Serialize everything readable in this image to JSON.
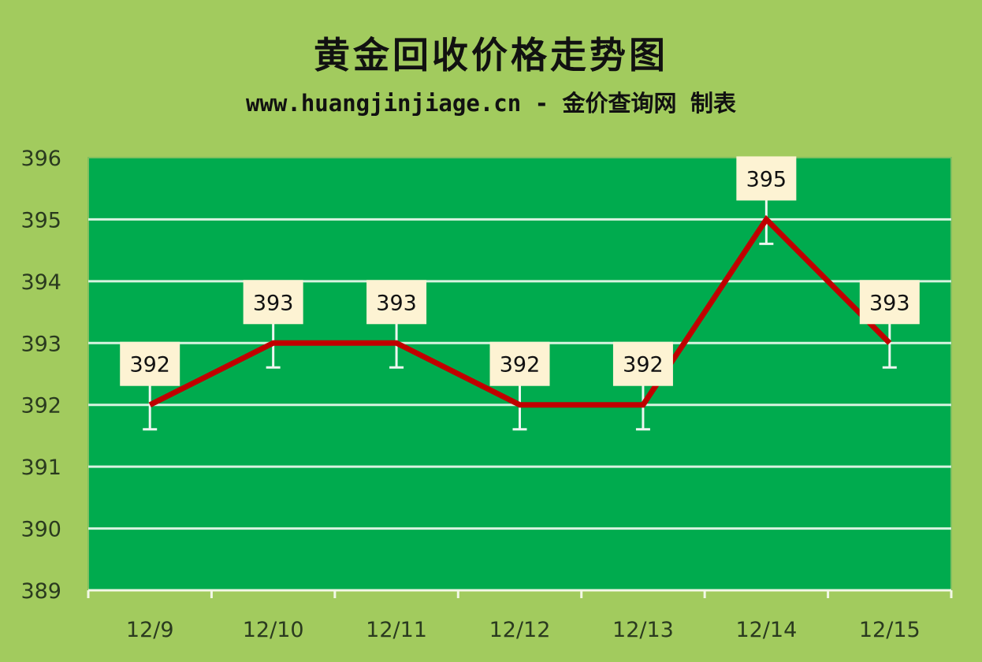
{
  "chart_data": {
    "type": "line",
    "title": "黄金回收价格走势图",
    "subtitle": "www.huangjinjiage.cn - 金价查询网 制表",
    "categories": [
      "12/9",
      "12/10",
      "12/11",
      "12/12",
      "12/13",
      "12/14",
      "12/15"
    ],
    "values": [
      392,
      393,
      393,
      392,
      392,
      395,
      393
    ],
    "data_labels": [
      "392",
      "393",
      "393",
      "392",
      "392",
      "395",
      "393"
    ],
    "ylim": [
      389,
      396
    ],
    "yticks": [
      "389",
      "390",
      "391",
      "392",
      "393",
      "394",
      "395",
      "396"
    ],
    "grid": true,
    "error_bars": true,
    "colors": {
      "background": "#a2cb5e",
      "plot_area": "#00ab4e",
      "line": "#c00000",
      "gridline": "#d8f3e0",
      "label_box": "#fdf3d3"
    }
  }
}
